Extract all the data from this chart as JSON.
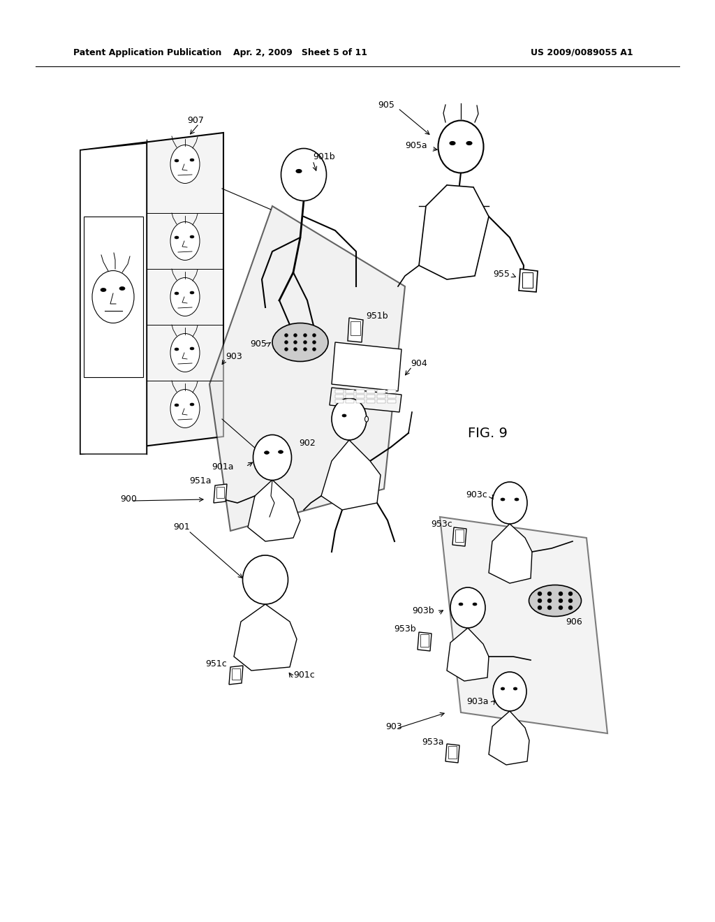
{
  "background_color": "#ffffff",
  "header_left": "Patent Application Publication",
  "header_mid": "Apr. 2, 2009   Sheet 5 of 11",
  "header_right": "US 2009/0089055 A1",
  "fig_label": "FIG. 9",
  "line_color": "#000000",
  "gray_fill": "#e8e8e8",
  "light_gray": "#f4f4f4",
  "panel_color": "#f0f0f0",
  "device_gray": "#cccccc",
  "label_fontsize": 9,
  "header_fontsize": 9
}
